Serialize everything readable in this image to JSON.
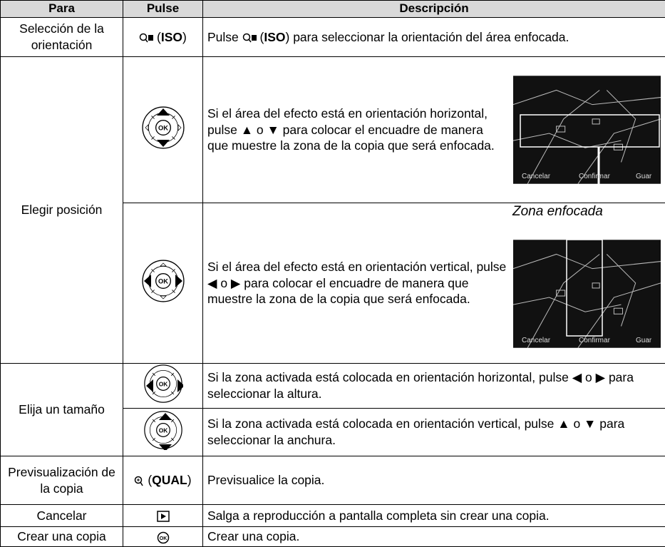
{
  "header": {
    "para": "Para",
    "pulse": "Pulse",
    "descripcion": "Descripción"
  },
  "rows": [
    {
      "para": "Selección de la orientación",
      "pulse": [
        "(",
        "ISO",
        ")"
      ],
      "description": [
        "Pulse ",
        "(",
        "ISO",
        ") para seleccionar la orientación del área enfocada."
      ]
    },
    {
      "para": "Elegir posición",
      "sub": [
        {
          "description": "Si el área del efecto está en orientación horizontal, pulse ▲ o ▼ para colocar el encuadre de manera que muestre la zona de la copia que será enfocada."
        },
        {
          "description": "Si el área del efecto está en orientación vertical, pulse ◀ o ▶ para colocar el encuadre de manera que muestre la zona de la copia que será enfocada."
        }
      ],
      "callout": "Zona enfocada",
      "screen_labels": [
        "Cancelar",
        "Confirmar",
        "Guar"
      ]
    },
    {
      "para": "Elija un tamaño",
      "sub": [
        {
          "description": "Si la zona activada está colocada en orientación horizontal, pulse ◀ o ▶ para seleccionar la altura."
        },
        {
          "description": "Si la zona activada está colocada en orientación vertical, pulse ▲ o ▼ para seleccionar la anchura."
        }
      ]
    },
    {
      "para": "Previsualización de la copia",
      "pulse": [
        "(",
        "QUAL",
        ")"
      ],
      "description": "Previsualice la copia."
    },
    {
      "para": "Cancelar",
      "description": "Salga a reproducción a pantalla completa sin crear una copia."
    },
    {
      "para": "Crear una copia",
      "description": "Crear una copia."
    }
  ]
}
